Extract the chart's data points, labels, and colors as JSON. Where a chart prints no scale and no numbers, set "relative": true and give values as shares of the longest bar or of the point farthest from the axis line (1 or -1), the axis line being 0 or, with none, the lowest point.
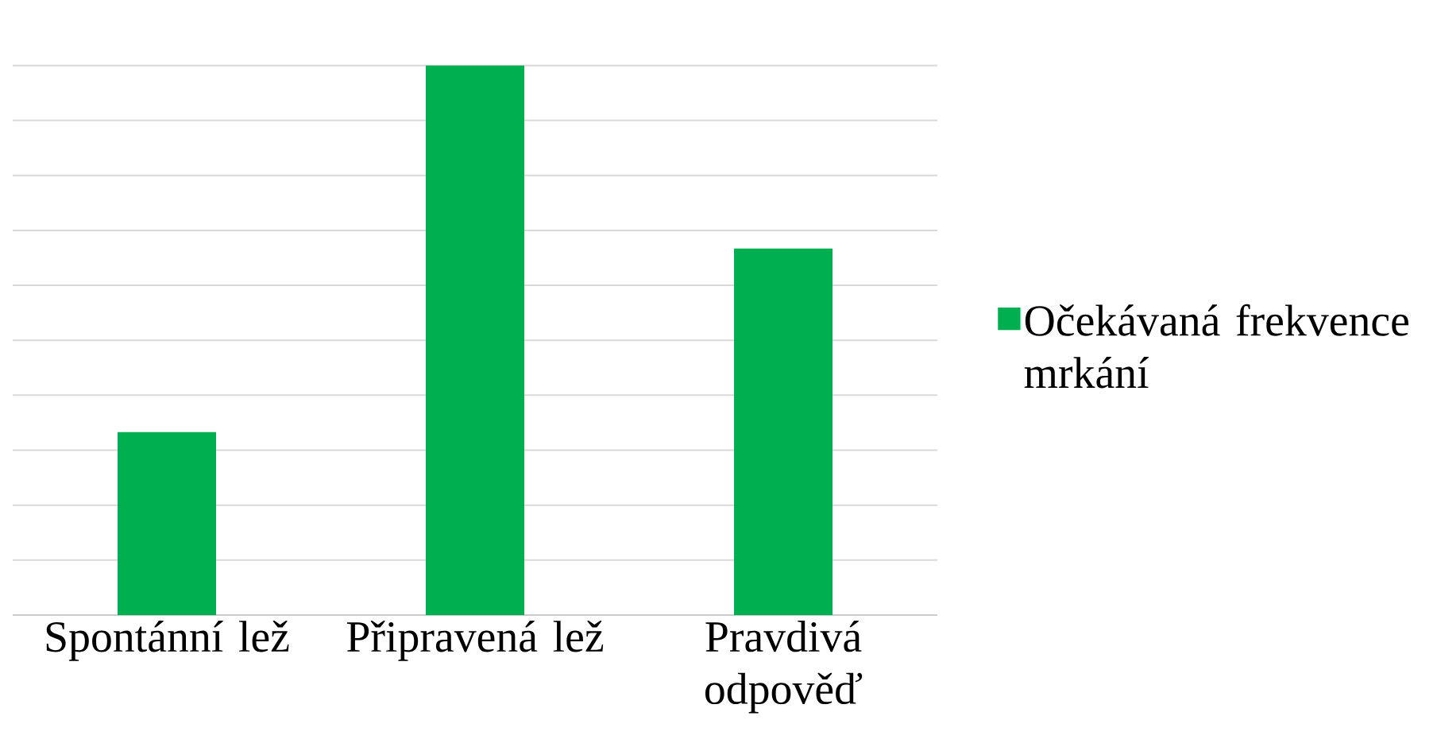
{
  "chart_data": {
    "type": "bar",
    "relative": true,
    "categories": [
      "Spontánní lež",
      "Připravená lež",
      "Pravdivá odpověď"
    ],
    "series": [
      {
        "name": "Očekávaná frekvence mrkání",
        "color": "#00b050",
        "values": [
          0.333,
          1,
          0.667
        ]
      }
    ],
    "grid": "y",
    "legend": "right"
  }
}
